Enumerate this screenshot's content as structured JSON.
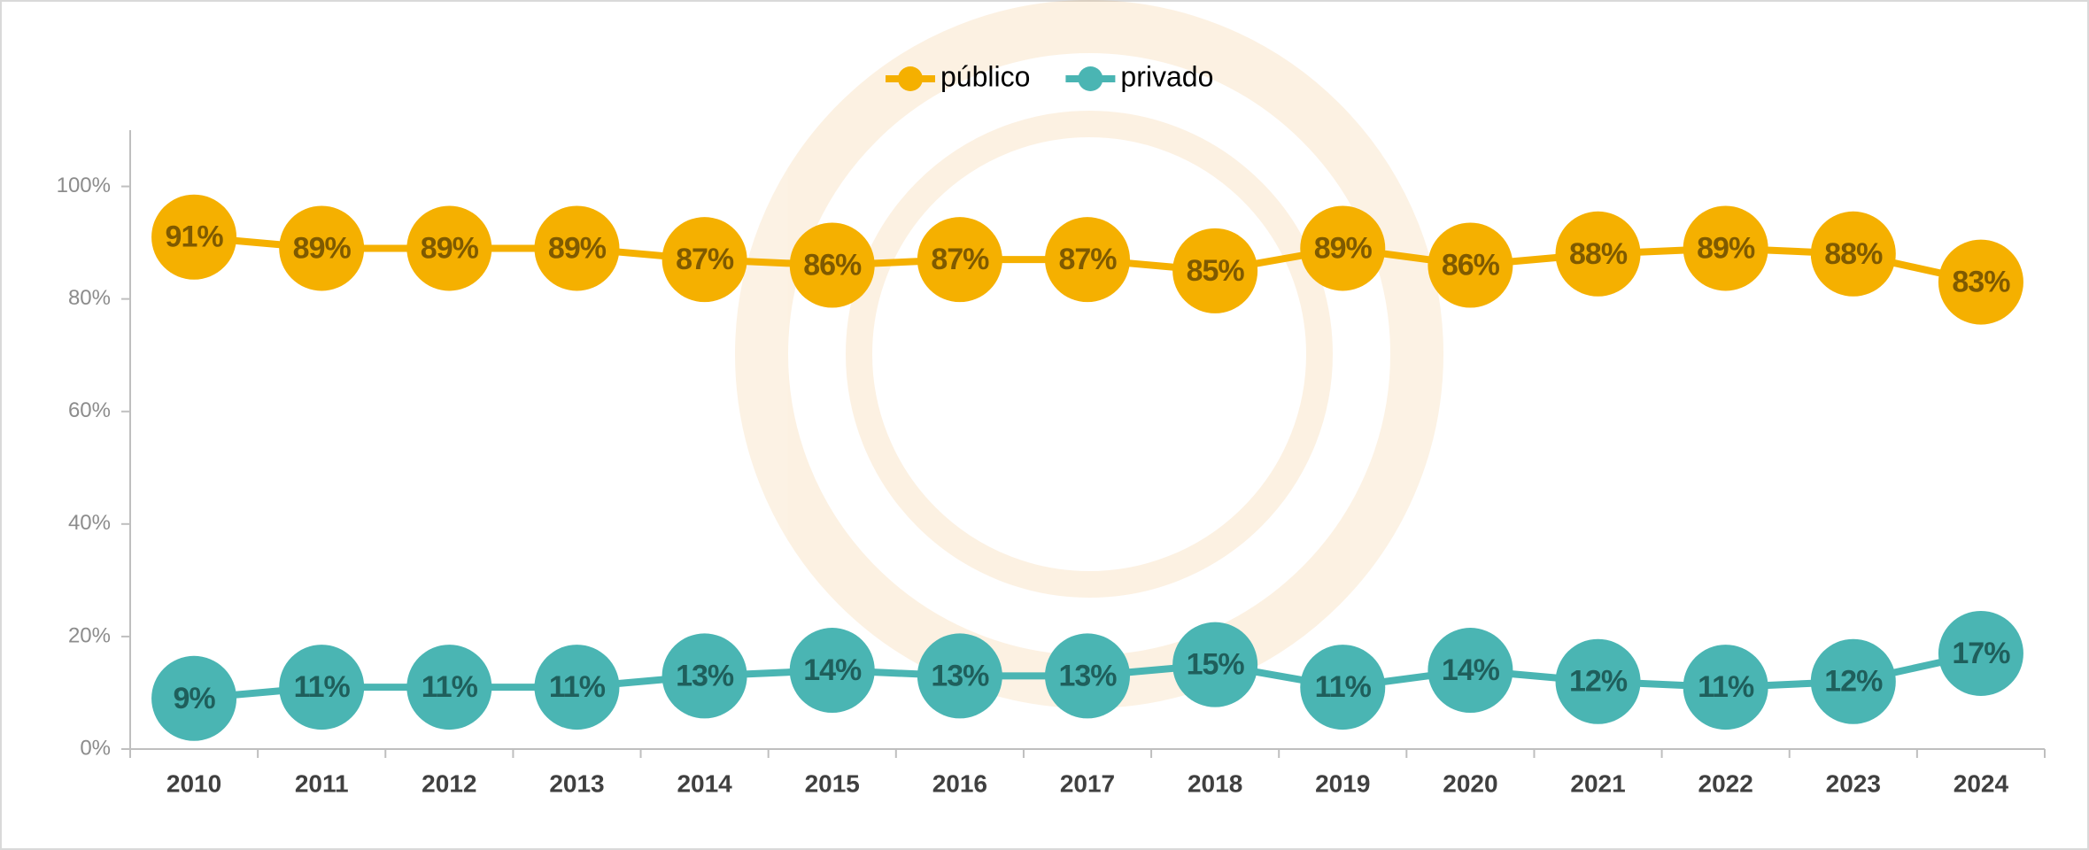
{
  "chart_data": {
    "type": "line",
    "categories": [
      "2010",
      "2011",
      "2012",
      "2013",
      "2014",
      "2015",
      "2016",
      "2017",
      "2018",
      "2019",
      "2020",
      "2021",
      "2022",
      "2023",
      "2024"
    ],
    "series": [
      {
        "name": "público",
        "color": "#f5b000",
        "label_color": "#7f5a00",
        "values": [
          91,
          89,
          89,
          89,
          87,
          86,
          87,
          87,
          85,
          89,
          86,
          88,
          89,
          88,
          83
        ],
        "value_labels": [
          "91%",
          "89%",
          "89%",
          "89%",
          "87%",
          "86%",
          "87%",
          "87%",
          "85%",
          "89%",
          "86%",
          "88%",
          "89%",
          "88%",
          "83%"
        ]
      },
      {
        "name": "privado",
        "color": "#4ab5b3",
        "label_color": "#1f5f5c",
        "values": [
          9,
          11,
          11,
          11,
          13,
          14,
          13,
          13,
          15,
          11,
          14,
          12,
          11,
          12,
          17
        ],
        "value_labels": [
          "9%",
          "11%",
          "11%",
          "11%",
          "13%",
          "14%",
          "13%",
          "13%",
          "15%",
          "11%",
          "14%",
          "12%",
          "11%",
          "12%",
          "17%"
        ]
      }
    ],
    "ylim": [
      0,
      110
    ],
    "yticks": [
      {
        "value": 0,
        "label": "0%"
      },
      {
        "value": 20,
        "label": "20%"
      },
      {
        "value": 40,
        "label": "40%"
      },
      {
        "value": 60,
        "label": "60%"
      },
      {
        "value": 80,
        "label": "80%"
      },
      {
        "value": 100,
        "label": "100%"
      }
    ],
    "legend": "top",
    "grid": false
  }
}
